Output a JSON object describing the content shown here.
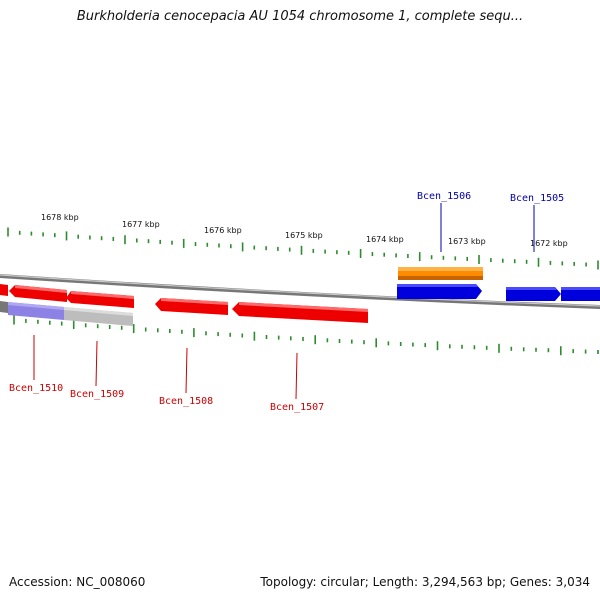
{
  "title": "Burkholderia cenocepacia AU 1054 chromosome 1, complete sequ...",
  "footer": {
    "accession": "Accession: NC_008060",
    "summary": "Topology: circular; Length: 3,294,563 bp; Genes: 3,034"
  },
  "colors": {
    "backbone": "#8a8a8a",
    "tick": "#2e8b2e",
    "forward_gene": "#0000dd",
    "reverse_gene": "#ee0000",
    "rna_gene": "#ff8c00",
    "highlight_forward": "#8c82e6",
    "highlight_reverse": "#bdbdbd",
    "forward_label": "#0000aa",
    "reverse_label": "#cc0000"
  },
  "scale_labels": [
    "1678 kbp",
    "1677 kbp",
    "1676 kbp",
    "1675 kbp",
    "1674 kbp",
    "1673 kbp",
    "1672 kbp"
  ],
  "gene_labels": {
    "forward": [
      "Bcen_1506",
      "Bcen_1505"
    ],
    "reverse": [
      "Bcen_1510",
      "Bcen_1509",
      "Bcen_1508",
      "Bcen_1507"
    ]
  }
}
